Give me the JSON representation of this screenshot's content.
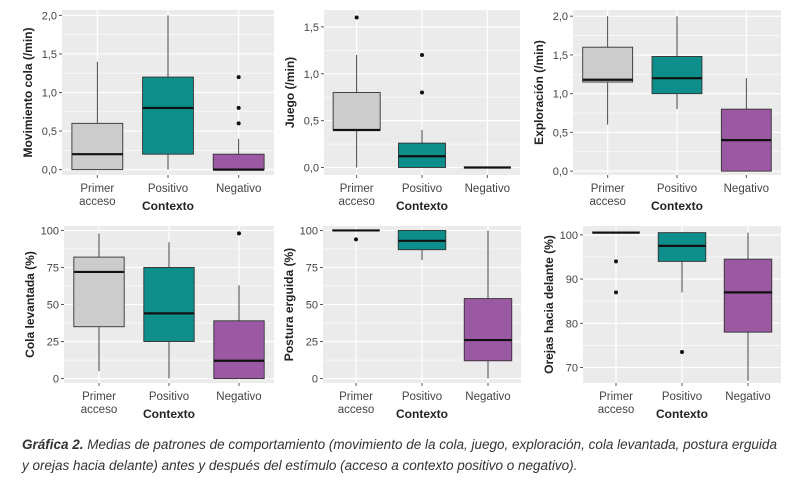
{
  "figure": {
    "panel_bg": "#ebebeb",
    "grid_color": "#ffffff",
    "box_colors": {
      "Primer acceso": "#cccccc",
      "Positivo": "#0e8e8a",
      "Negativo": "#9b59a4"
    }
  },
  "caption": {
    "label": "Gráfica 2.",
    "text": " Medias de patrones de comportamiento (movimiento de la cola, juego, exploración, cola levantada, postura erguida y orejas hacia delante) antes y después del estímulo (acceso a contexto positivo o negativo)."
  },
  "chart_data": [
    {
      "type": "box",
      "ylabel": "Movimiento cola (/min)",
      "xlabel": "Contexto",
      "categories": [
        "Primer\nacceso",
        "Positivo",
        "Negativo"
      ],
      "yticks": [
        "0,0",
        "0,5",
        "1,0",
        "1,5",
        "2,0"
      ],
      "ytick_values": [
        0,
        0.5,
        1.0,
        1.5,
        2.0
      ],
      "ylim": [
        -0.07,
        2.07
      ],
      "boxes": [
        {
          "min": 0.0,
          "q1": 0.0,
          "median": 0.2,
          "q3": 0.6,
          "max": 1.4,
          "outliers": []
        },
        {
          "min": 0.0,
          "q1": 0.2,
          "median": 0.8,
          "q3": 1.2,
          "max": 2.0,
          "outliers": []
        },
        {
          "min": 0.0,
          "q1": 0.0,
          "median": 0.0,
          "q3": 0.2,
          "max": 0.4,
          "outliers": [
            0.6,
            0.8,
            1.2
          ]
        }
      ]
    },
    {
      "type": "box",
      "ylabel": "Juego (/min)",
      "xlabel": "Contexto",
      "categories": [
        "Primer\nacceso",
        "Positivo",
        "Negativo"
      ],
      "yticks": [
        "0,0",
        "0,5",
        "1,0",
        "1,5"
      ],
      "ytick_values": [
        0,
        0.5,
        1.0,
        1.5
      ],
      "ylim": [
        -0.08,
        1.68
      ],
      "boxes": [
        {
          "min": 0.0,
          "q1": 0.4,
          "median": 0.4,
          "q3": 0.8,
          "max": 1.2,
          "outliers": [
            1.6
          ]
        },
        {
          "min": 0.0,
          "q1": 0.0,
          "median": 0.12,
          "q3": 0.26,
          "max": 0.4,
          "outliers": [
            0.8,
            1.2
          ]
        },
        {
          "min": 0.0,
          "q1": 0.0,
          "median": 0.0,
          "q3": 0.0,
          "max": 0.0,
          "outliers": []
        }
      ]
    },
    {
      "type": "box",
      "ylabel": "Exploración (/min)",
      "xlabel": "Contexto",
      "categories": [
        "Primer\nacceso",
        "Positivo",
        "Negativo"
      ],
      "yticks": [
        "0,0",
        "0,5",
        "1,0",
        "1,5",
        "2,0"
      ],
      "ytick_values": [
        0,
        0.5,
        1.0,
        1.5,
        2.0
      ],
      "ylim": [
        -0.05,
        2.08
      ],
      "boxes": [
        {
          "min": 0.6,
          "q1": 1.15,
          "median": 1.18,
          "q3": 1.6,
          "max": 2.0,
          "outliers": []
        },
        {
          "min": 0.8,
          "q1": 1.0,
          "median": 1.2,
          "q3": 1.48,
          "max": 2.0,
          "outliers": []
        },
        {
          "min": 0.0,
          "q1": 0.0,
          "median": 0.4,
          "q3": 0.8,
          "max": 1.2,
          "outliers": []
        }
      ]
    },
    {
      "type": "box",
      "ylabel": "Cola levantada (%)",
      "xlabel": "Contexto",
      "categories": [
        "Primer\nacceso",
        "Positivo",
        "Negativo"
      ],
      "yticks": [
        "0",
        "25",
        "50",
        "75",
        "100"
      ],
      "ytick_values": [
        0,
        25,
        50,
        75,
        100
      ],
      "ylim": [
        -3,
        103
      ],
      "boxes": [
        {
          "min": 5,
          "q1": 35,
          "median": 72,
          "q3": 82,
          "max": 98,
          "outliers": []
        },
        {
          "min": 0,
          "q1": 25,
          "median": 44,
          "q3": 75,
          "max": 92,
          "outliers": []
        },
        {
          "min": 0,
          "q1": 0,
          "median": 12,
          "q3": 39,
          "max": 63,
          "outliers": [
            98
          ]
        }
      ]
    },
    {
      "type": "box",
      "ylabel": "Postura erguida (%)",
      "xlabel": "Contexto",
      "categories": [
        "Primer\nacceso",
        "Positivo",
        "Negativo"
      ],
      "yticks": [
        "0",
        "25",
        "50",
        "75",
        "100"
      ],
      "ytick_values": [
        0,
        25,
        50,
        75,
        100
      ],
      "ylim": [
        -3,
        103
      ],
      "boxes": [
        {
          "min": 100,
          "q1": 100,
          "median": 100,
          "q3": 100,
          "max": 100,
          "outliers": [
            94
          ]
        },
        {
          "min": 80,
          "q1": 87,
          "median": 93,
          "q3": 100,
          "max": 100,
          "outliers": []
        },
        {
          "min": 0,
          "q1": 12,
          "median": 26,
          "q3": 54,
          "max": 100,
          "outliers": []
        }
      ]
    },
    {
      "type": "box",
      "ylabel": "Orejas hacia delante (%)",
      "xlabel": "Contexto",
      "categories": [
        "Primer\nacceso",
        "Positivo",
        "Negativo"
      ],
      "yticks": [
        "70",
        "80",
        "90",
        "100"
      ],
      "ytick_values": [
        70,
        80,
        90,
        100
      ],
      "ylim": [
        66.5,
        102
      ],
      "boxes": [
        {
          "min": 100.5,
          "q1": 100.5,
          "median": 100.5,
          "q3": 100.5,
          "max": 100.5,
          "outliers": [
            94,
            87
          ]
        },
        {
          "min": 87,
          "q1": 94,
          "median": 97.5,
          "q3": 100.5,
          "max": 100.5,
          "outliers": [
            73.5
          ]
        },
        {
          "min": 67,
          "q1": 78,
          "median": 87,
          "q3": 94.5,
          "max": 100.5,
          "outliers": []
        }
      ]
    }
  ]
}
